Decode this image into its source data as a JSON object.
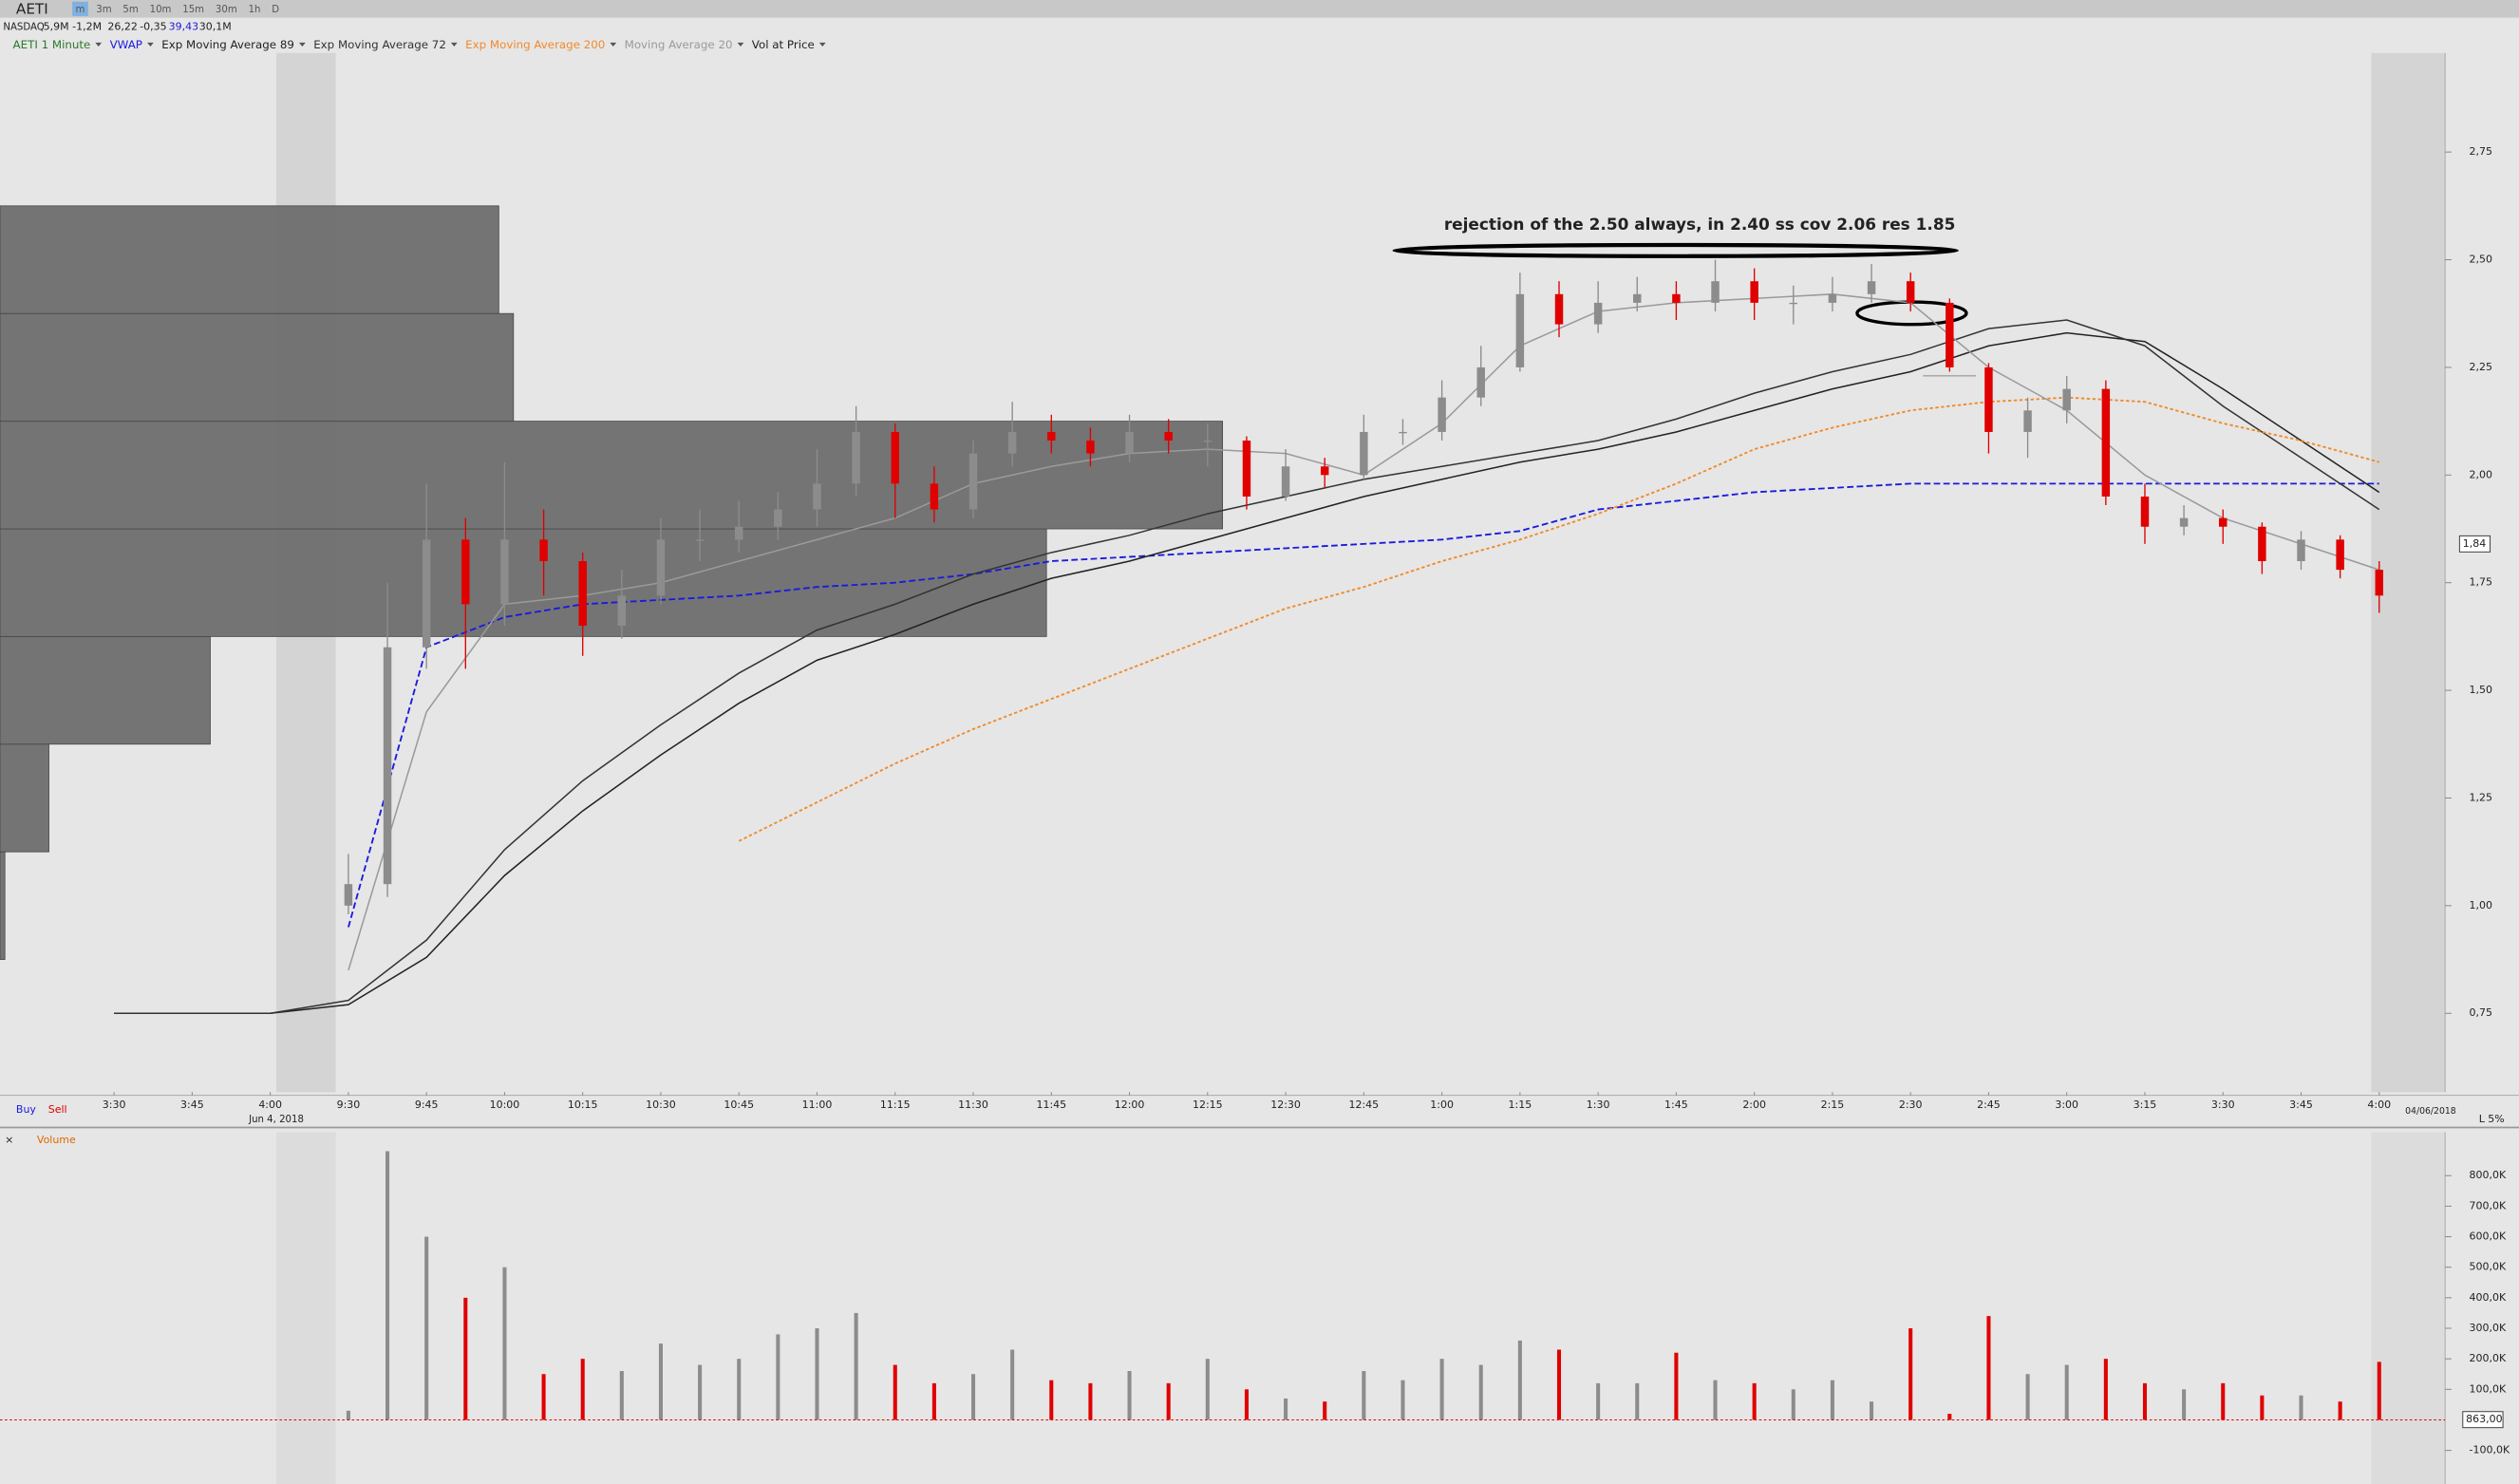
{
  "toolbar": {
    "symbol": "AETI",
    "timeframes": [
      "m",
      "3m",
      "5m",
      "10m",
      "15m",
      "30m",
      "1h",
      "D"
    ],
    "quote": [
      "NASDAQ",
      "5,9M",
      "-1,2M",
      "26,22",
      "-0,35",
      "39,43",
      "30,1M"
    ],
    "buy": "Buy",
    "sell": "Sell",
    "risk": "L 5%"
  },
  "chart_data": [
    {
      "type": "candlestick",
      "title": "AETI 1 Minute",
      "annotation": "rejection of the 2.50 always, in 2.40 ss cov 2.06 res 1.85",
      "date_start": "Jun 4, 2018",
      "date_end": "04/06/2018",
      "categories": [
        "3:30",
        "3:45",
        "4:00",
        "9:30",
        "9:45",
        "10:00",
        "10:15",
        "10:30",
        "10:45",
        "11:00",
        "11:15",
        "11:30",
        "11:45",
        "12:00",
        "12:15",
        "12:30",
        "12:45",
        "1:00",
        "1:15",
        "1:30",
        "1:45",
        "2:00",
        "2:15",
        "2:30",
        "2:45",
        "3:00",
        "3:15",
        "3:30",
        "3:45",
        "4:00"
      ],
      "candles": [
        [
          1.0,
          1.12,
          0.98,
          1.05
        ],
        [
          1.05,
          1.75,
          1.02,
          1.6
        ],
        [
          1.6,
          1.98,
          1.55,
          1.85
        ],
        [
          1.85,
          1.9,
          1.55,
          1.7
        ],
        [
          1.7,
          2.03,
          1.65,
          1.85
        ],
        [
          1.85,
          1.92,
          1.72,
          1.8
        ],
        [
          1.8,
          1.82,
          1.58,
          1.65
        ],
        [
          1.65,
          1.78,
          1.62,
          1.72
        ],
        [
          1.72,
          1.9,
          1.7,
          1.85
        ],
        [
          1.85,
          1.92,
          1.8,
          1.85
        ],
        [
          1.85,
          1.94,
          1.82,
          1.88
        ],
        [
          1.88,
          1.96,
          1.85,
          1.92
        ],
        [
          1.92,
          2.06,
          1.88,
          1.98
        ],
        [
          1.98,
          2.16,
          1.95,
          2.1
        ],
        [
          2.1,
          2.12,
          1.9,
          1.98
        ],
        [
          1.98,
          2.02,
          1.89,
          1.92
        ],
        [
          1.92,
          2.08,
          1.9,
          2.05
        ],
        [
          2.05,
          2.17,
          2.02,
          2.1
        ],
        [
          2.1,
          2.14,
          2.05,
          2.08
        ],
        [
          2.08,
          2.11,
          2.02,
          2.05
        ],
        [
          2.05,
          2.14,
          2.03,
          2.1
        ],
        [
          2.1,
          2.13,
          2.05,
          2.08
        ],
        [
          2.08,
          2.12,
          2.02,
          2.08
        ],
        [
          2.08,
          2.09,
          1.92,
          1.95
        ],
        [
          1.95,
          2.06,
          1.94,
          2.02
        ],
        [
          2.02,
          2.04,
          1.97,
          2.0
        ],
        [
          2.0,
          2.14,
          1.99,
          2.1
        ],
        [
          2.1,
          2.13,
          2.07,
          2.1
        ],
        [
          2.1,
          2.22,
          2.08,
          2.18
        ],
        [
          2.18,
          2.3,
          2.16,
          2.25
        ],
        [
          2.25,
          2.47,
          2.24,
          2.42
        ],
        [
          2.42,
          2.45,
          2.32,
          2.35
        ],
        [
          2.35,
          2.45,
          2.33,
          2.4
        ],
        [
          2.4,
          2.46,
          2.38,
          2.42
        ],
        [
          2.42,
          2.45,
          2.36,
          2.4
        ],
        [
          2.4,
          2.5,
          2.38,
          2.45
        ],
        [
          2.45,
          2.48,
          2.36,
          2.4
        ],
        [
          2.4,
          2.44,
          2.35,
          2.4
        ],
        [
          2.4,
          2.46,
          2.38,
          2.42
        ],
        [
          2.42,
          2.49,
          2.4,
          2.45
        ],
        [
          2.45,
          2.47,
          2.38,
          2.4
        ],
        [
          2.4,
          2.41,
          2.24,
          2.25
        ],
        [
          2.25,
          2.26,
          2.05,
          2.1
        ],
        [
          2.1,
          2.18,
          2.04,
          2.15
        ],
        [
          2.15,
          2.23,
          2.12,
          2.2
        ],
        [
          2.2,
          2.22,
          1.93,
          1.95
        ],
        [
          1.95,
          1.98,
          1.84,
          1.88
        ],
        [
          1.88,
          1.93,
          1.86,
          1.9
        ],
        [
          1.9,
          1.92,
          1.84,
          1.88
        ],
        [
          1.88,
          1.89,
          1.77,
          1.8
        ],
        [
          1.8,
          1.87,
          1.78,
          1.85
        ],
        [
          1.85,
          1.86,
          1.76,
          1.78
        ],
        [
          1.78,
          1.8,
          1.68,
          1.72
        ]
      ],
      "up_color": "#8c8c8c",
      "down_color": "#e00000",
      "series": [
        {
          "name": "VWAP",
          "color": "#1a1adf",
          "dash": true,
          "values": [
            null,
            null,
            null,
            0.95,
            1.6,
            1.67,
            1.7,
            1.71,
            1.72,
            1.74,
            1.75,
            1.77,
            1.8,
            1.81,
            1.82,
            1.83,
            1.84,
            1.85,
            1.87,
            1.92,
            1.94,
            1.96,
            1.97,
            1.98,
            1.98,
            1.98,
            1.98,
            1.98,
            1.98,
            1.98
          ]
        },
        {
          "name": "Exp Moving Average 89",
          "color": "#222222",
          "dash": false,
          "values": [
            0.75,
            0.75,
            0.75,
            0.77,
            0.88,
            1.07,
            1.22,
            1.35,
            1.47,
            1.57,
            1.63,
            1.7,
            1.76,
            1.8,
            1.85,
            1.9,
            1.95,
            1.99,
            2.03,
            2.06,
            2.1,
            2.15,
            2.2,
            2.24,
            2.3,
            2.33,
            2.31,
            2.2,
            2.08,
            1.96
          ]
        },
        {
          "name": "Exp Moving Average 72",
          "color": "#333333",
          "dash": false,
          "values": [
            0.75,
            0.75,
            0.75,
            0.78,
            0.92,
            1.13,
            1.29,
            1.42,
            1.54,
            1.64,
            1.7,
            1.77,
            1.82,
            1.86,
            1.91,
            1.95,
            1.99,
            2.02,
            2.05,
            2.08,
            2.13,
            2.19,
            2.24,
            2.28,
            2.34,
            2.36,
            2.3,
            2.16,
            2.04,
            1.92
          ]
        },
        {
          "name": "Exp Moving Average 200",
          "color": "#f08a2c",
          "dash": true,
          "values": [
            null,
            null,
            null,
            null,
            null,
            null,
            null,
            null,
            1.15,
            1.24,
            1.33,
            1.41,
            1.48,
            1.55,
            1.62,
            1.69,
            1.74,
            1.8,
            1.85,
            1.91,
            1.98,
            2.06,
            2.11,
            2.15,
            2.17,
            2.18,
            2.17,
            2.12,
            2.08,
            2.03
          ]
        },
        {
          "name": "Moving Average 20",
          "color": "#9a9a9a",
          "dash": false,
          "values": [
            null,
            null,
            null,
            0.85,
            1.45,
            1.7,
            1.72,
            1.75,
            1.8,
            1.85,
            1.9,
            1.98,
            2.02,
            2.05,
            2.06,
            2.05,
            2.0,
            2.12,
            2.3,
            2.38,
            2.4,
            2.41,
            2.42,
            2.4,
            2.25,
            2.15,
            2.0,
            1.9,
            1.84,
            1.78
          ]
        }
      ],
      "vol_at_price": {
        "name": "Vol at Price",
        "color": "#6e6e6e",
        "bins": [
          0.875,
          1.125,
          1.375,
          1.625,
          1.875,
          2.125,
          2.375,
          2.625
        ],
        "values": [
          2,
          20,
          86,
          428,
          500,
          210,
          204
        ],
        "xlim": [
          0,
          1000
        ]
      },
      "last_price": {
        "value": 1.84,
        "label": "1,84"
      },
      "ylim": [
        0.567,
        2.98
      ],
      "yticks": [
        {
          "value": 0.75,
          "label": "0,75"
        },
        {
          "value": 1.0,
          "label": "1,00"
        },
        {
          "value": 1.25,
          "label": "1,25"
        },
        {
          "value": 1.5,
          "label": "1,50"
        },
        {
          "value": 1.75,
          "label": "1,75"
        },
        {
          "value": 2.0,
          "label": "2,00"
        },
        {
          "value": 2.25,
          "label": "2,25"
        },
        {
          "value": 2.5,
          "label": "2,50"
        },
        {
          "value": 2.75,
          "label": "2,75"
        }
      ]
    },
    {
      "type": "bar",
      "title": "Volume",
      "values": [
        30000,
        880000,
        600000,
        400000,
        500000,
        150000,
        200000,
        160000,
        250000,
        180000,
        200000,
        280000,
        300000,
        350000,
        180000,
        120000,
        150000,
        230000,
        130000,
        120000,
        160000,
        120000,
        200000,
        100000,
        70000,
        60000,
        160000,
        130000,
        200000,
        180000,
        260000,
        230000,
        120000,
        120000,
        220000,
        130000,
        120000,
        100000,
        130000,
        60000,
        300000,
        20000,
        340000,
        150000,
        180000,
        200000,
        120000,
        100000,
        120000,
        80000,
        80000,
        60000,
        190000
      ],
      "last_value": {
        "value": 863,
        "label": "863,00"
      },
      "ylim": [
        -210000,
        942000
      ],
      "yticks": [
        {
          "value": -100000,
          "label": "-100,0K"
        },
        {
          "value": 100000,
          "label": "100,0K"
        },
        {
          "value": 200000,
          "label": "200,0K"
        },
        {
          "value": 300000,
          "label": "300,0K"
        },
        {
          "value": 400000,
          "label": "400,0K"
        },
        {
          "value": 500000,
          "label": "500,0K"
        },
        {
          "value": 600000,
          "label": "600,0K"
        },
        {
          "value": 700000,
          "label": "700,0K"
        },
        {
          "value": 800000,
          "label": "800,0K"
        }
      ]
    }
  ]
}
